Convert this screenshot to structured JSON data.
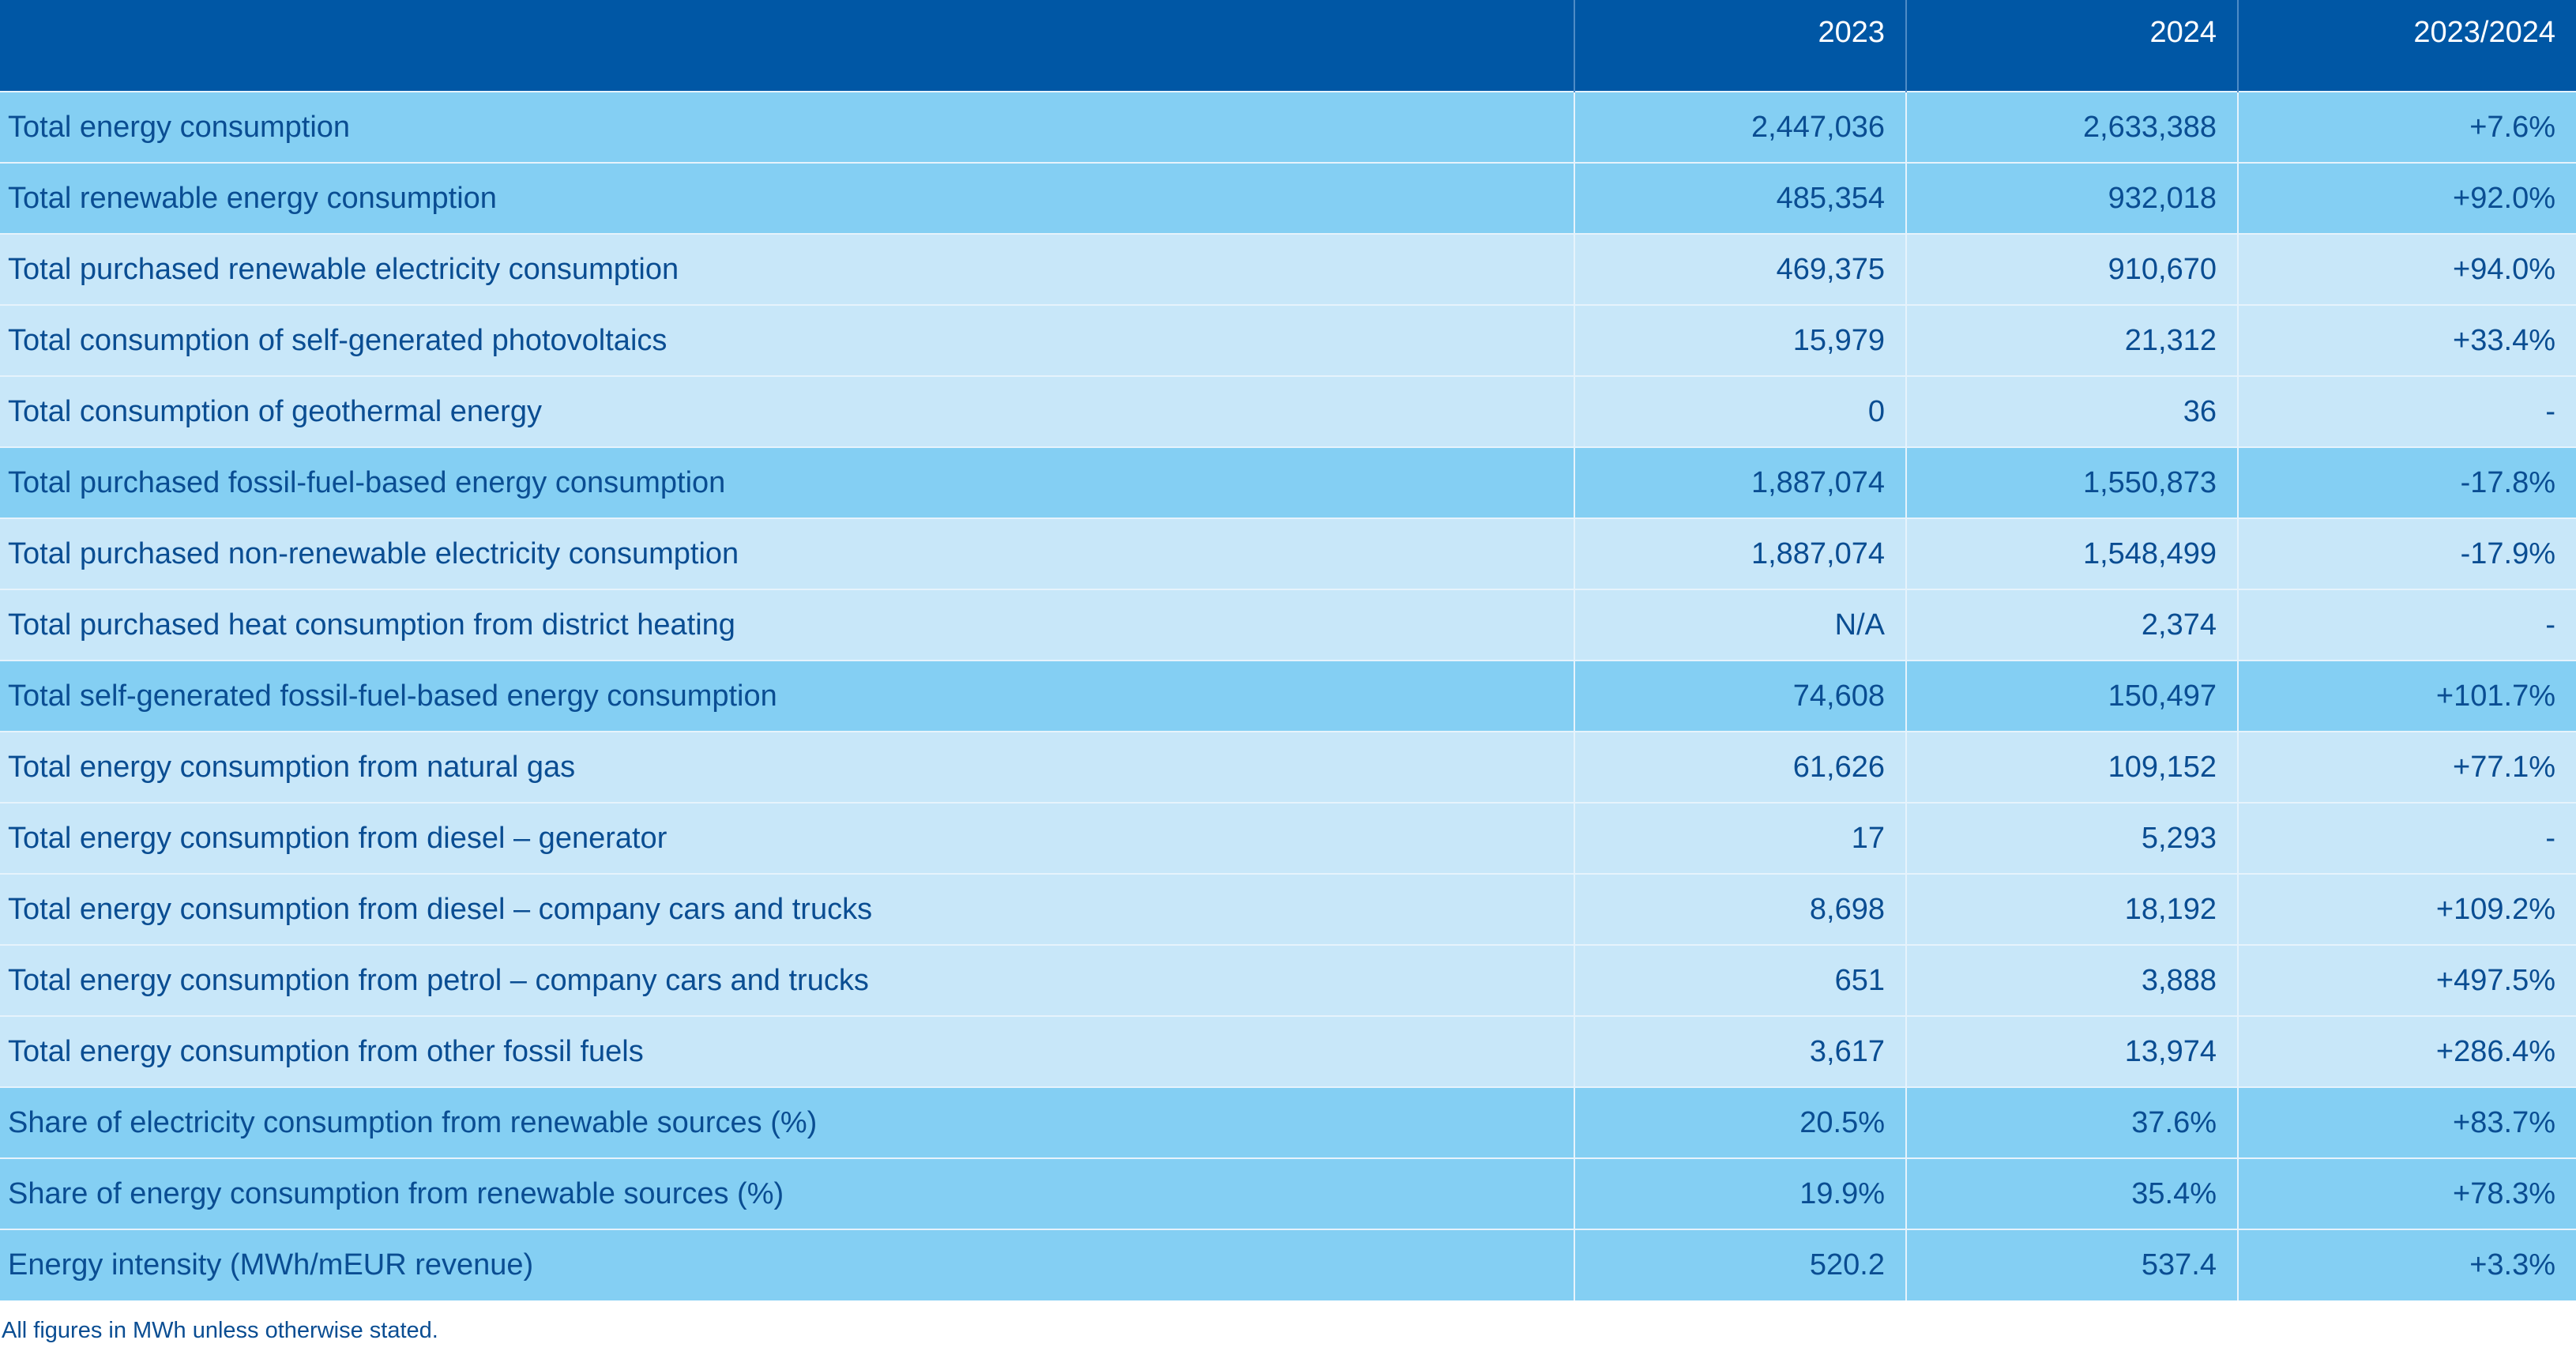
{
  "header": {
    "label": "",
    "col_2023": "2023",
    "col_2024": "2024",
    "col_change": "2023/2024"
  },
  "rows": [
    {
      "label": "Total energy consumption",
      "y2023": "2,447,036",
      "y2024": "2,633,388",
      "change": "+7.6%",
      "style": "dark"
    },
    {
      "label": "Total renewable energy consumption",
      "y2023": "485,354",
      "y2024": "932,018",
      "change": "+92.0%",
      "style": "dark"
    },
    {
      "label": "Total purchased renewable electricity consumption",
      "y2023": "469,375",
      "y2024": "910,670",
      "change": "+94.0%",
      "style": "light"
    },
    {
      "label": "Total consumption of self-generated photovoltaics",
      "y2023": "15,979",
      "y2024": "21,312",
      "change": "+33.4%",
      "style": "light"
    },
    {
      "label": "Total consumption of geothermal energy",
      "y2023": "0",
      "y2024": "36",
      "change": "-",
      "style": "light"
    },
    {
      "label": "Total purchased fossil-fuel-based energy consumption",
      "y2023": "1,887,074",
      "y2024": "1,550,873",
      "change": "-17.8%",
      "style": "dark"
    },
    {
      "label": "Total purchased non-renewable electricity consumption",
      "y2023": "1,887,074",
      "y2024": "1,548,499",
      "change": "-17.9%",
      "style": "light"
    },
    {
      "label": "Total purchased heat consumption from district heating",
      "y2023": "N/A",
      "y2024": "2,374",
      "change": "-",
      "style": "light"
    },
    {
      "label": "Total self-generated fossil-fuel-based energy consumption",
      "y2023": "74,608",
      "y2024": "150,497",
      "change": "+101.7%",
      "style": "dark"
    },
    {
      "label": "Total energy consumption from natural gas",
      "y2023": "61,626",
      "y2024": "109,152",
      "change": "+77.1%",
      "style": "light"
    },
    {
      "label": "Total energy consumption from diesel – generator",
      "y2023": "17",
      "y2024": "5,293",
      "change": "-",
      "style": "light"
    },
    {
      "label": "Total energy consumption from diesel – company cars and trucks",
      "y2023": "8,698",
      "y2024": "18,192",
      "change": "+109.2%",
      "style": "light"
    },
    {
      "label": "Total energy consumption from petrol – company cars and trucks",
      "y2023": "651",
      "y2024": "3,888",
      "change": "+497.5%",
      "style": "light"
    },
    {
      "label": "Total energy consumption from other fossil fuels",
      "y2023": "3,617",
      "y2024": "13,974",
      "change": "+286.4%",
      "style": "light"
    },
    {
      "label": "Share of electricity consumption from renewable sources (%)",
      "y2023": "20.5%",
      "y2024": "37.6%",
      "change": "+83.7%",
      "style": "dark"
    },
    {
      "label": "Share of energy consumption from renewable sources (%)",
      "y2023": "19.9%",
      "y2024": "35.4%",
      "change": "+78.3%",
      "style": "dark"
    },
    {
      "label": "Energy intensity (MWh/mEUR revenue)",
      "y2023": "520.2",
      "y2024": "537.4",
      "change": "+3.3%",
      "style": "dark"
    }
  ],
  "footnote": "All figures in MWh unless otherwise stated.",
  "colors": {
    "header_bg": "#0057a5",
    "dark_row_bg": "#84cff3",
    "light_row_bg": "#c8e7f9",
    "text": "#0a4d92"
  }
}
